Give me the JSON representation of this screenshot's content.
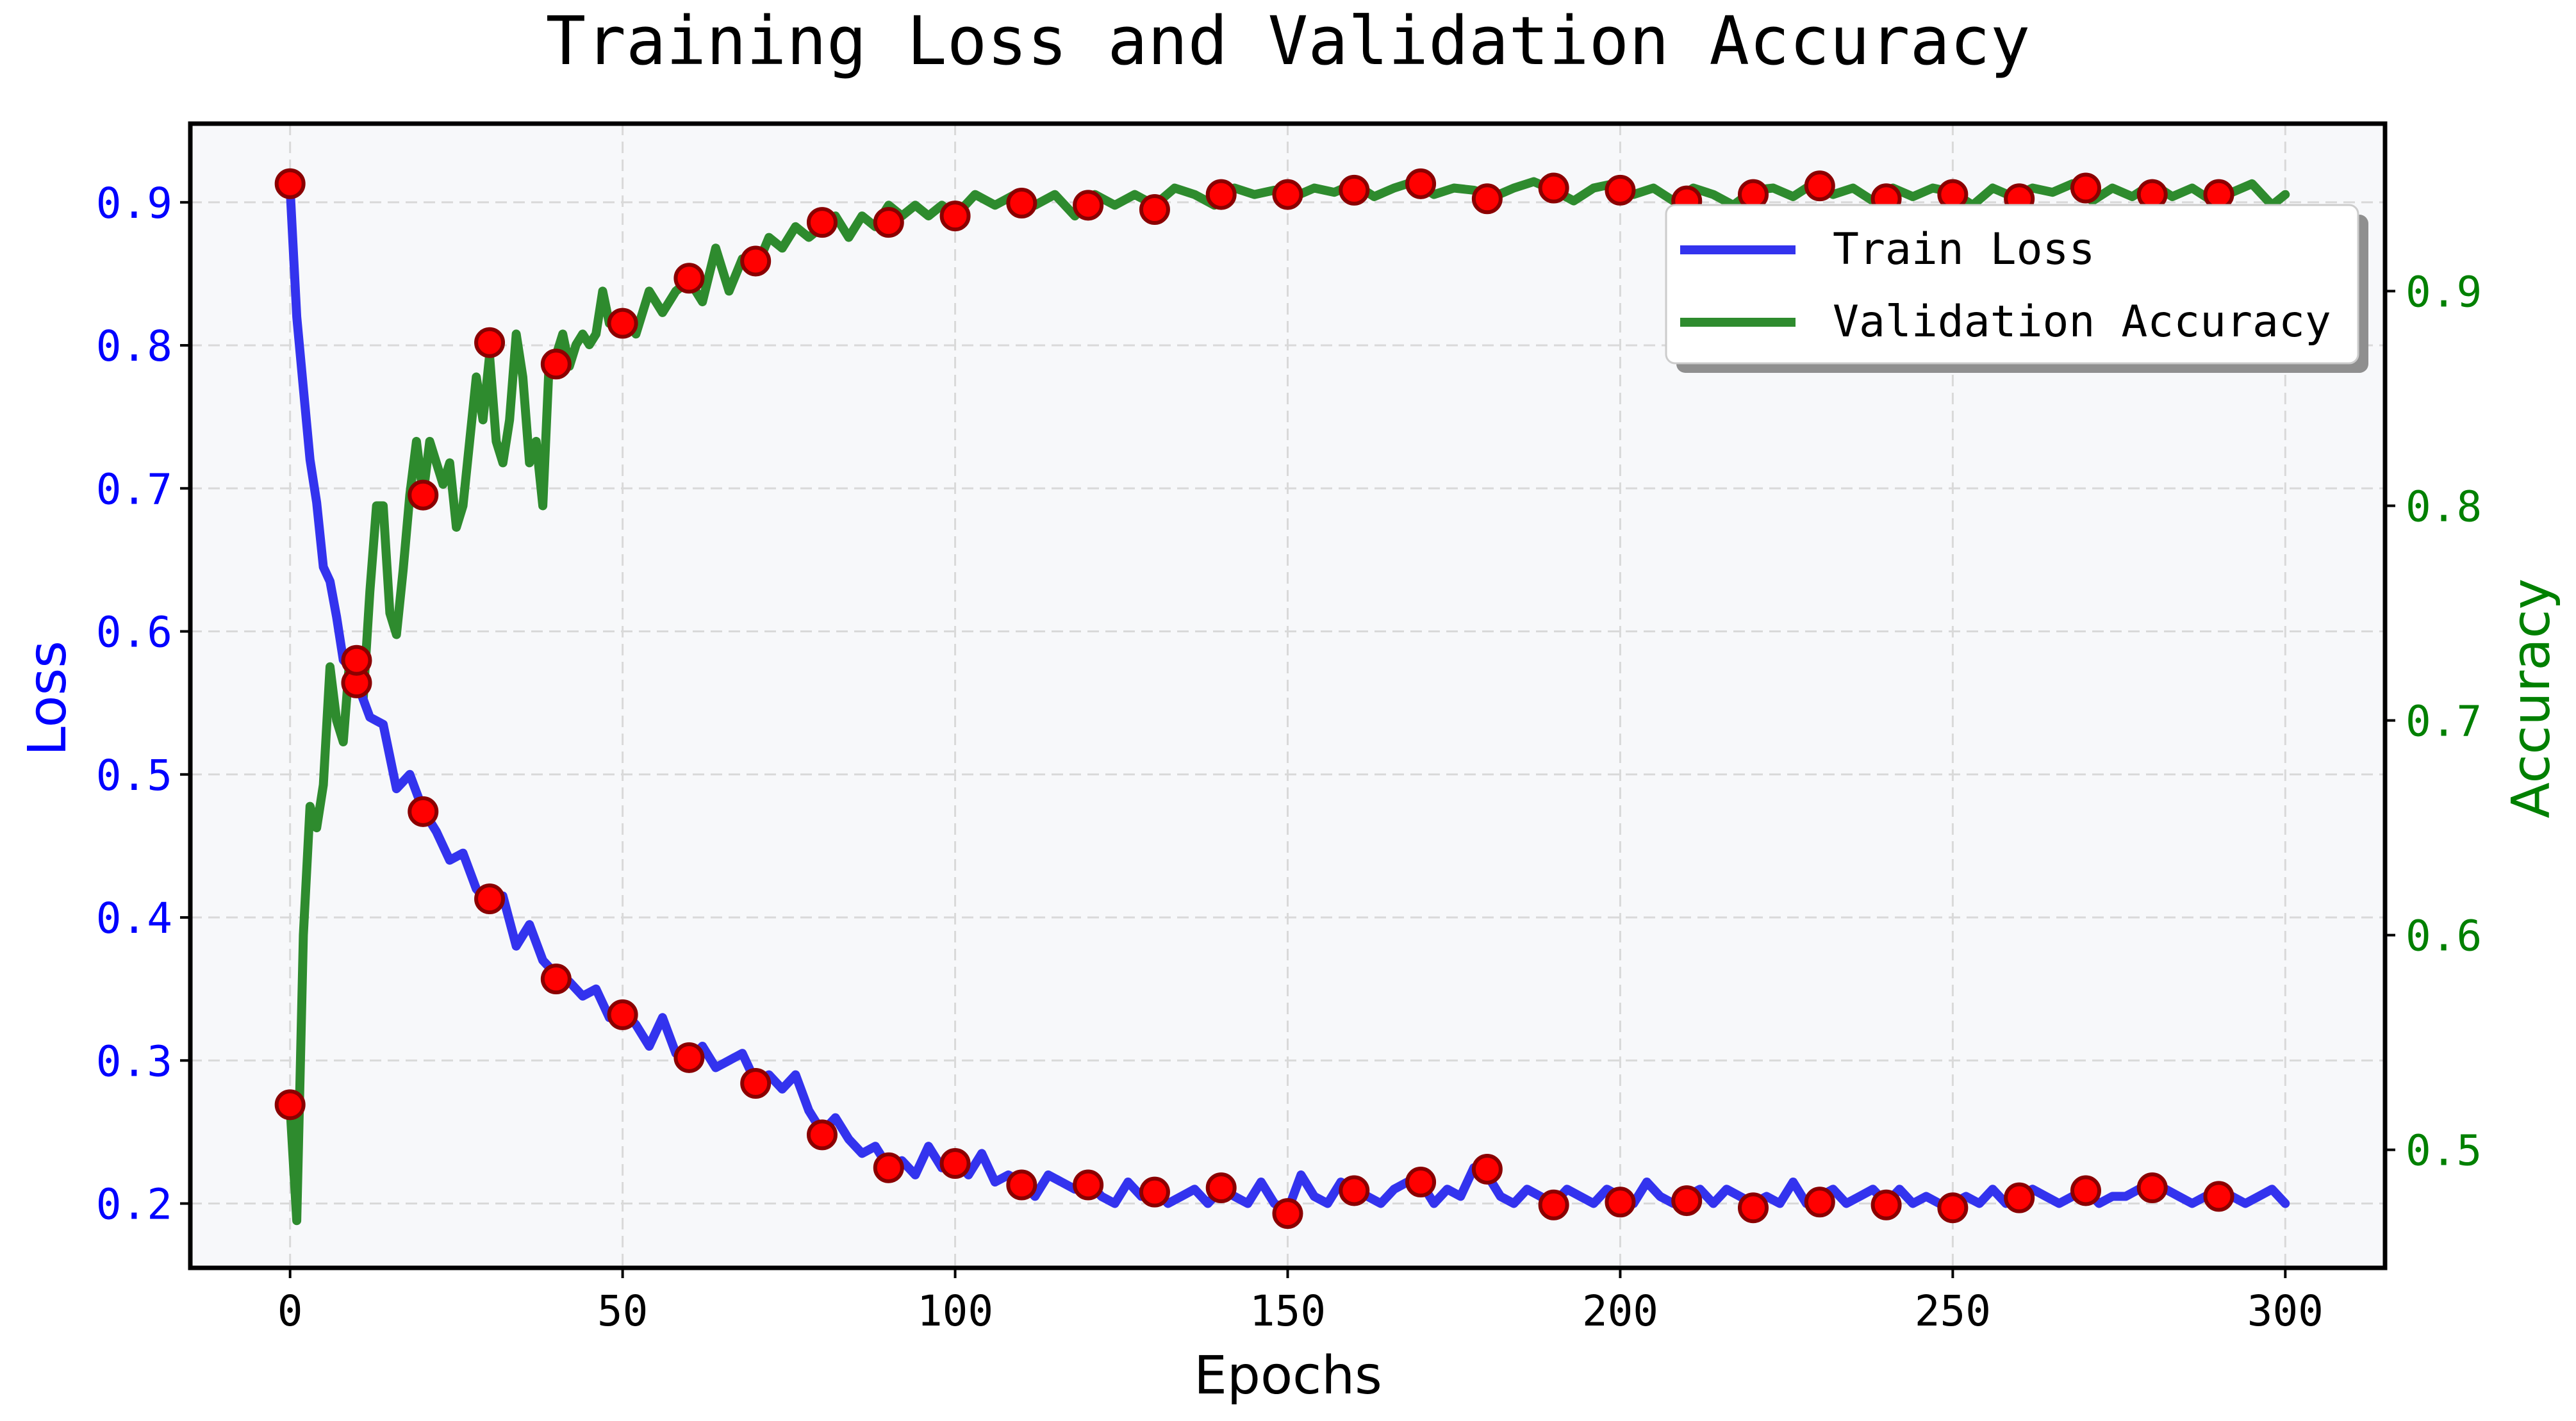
{
  "chart_data": {
    "type": "line",
    "title": "Training Loss and Validation Accuracy",
    "xlabel": "Epochs",
    "ylabel_left": "Loss",
    "ylabel_right": "Accuracy",
    "xlim": [
      -15,
      315
    ],
    "ylim_left": [
      0.155,
      0.955
    ],
    "ylim_right": [
      0.445,
      0.978
    ],
    "xticks": [
      0,
      50,
      100,
      150,
      200,
      250,
      300
    ],
    "yticks_left": [
      0.2,
      0.3,
      0.4,
      0.5,
      0.6,
      0.7,
      0.8,
      0.9
    ],
    "yticks_right": [
      0.5,
      0.6,
      0.7,
      0.8,
      0.9
    ],
    "xtick_labels": [
      "0",
      "50",
      "100",
      "150",
      "200",
      "250",
      "300"
    ],
    "ytick_labels_left": [
      "0.2",
      "0.3",
      "0.4",
      "0.5",
      "0.6",
      "0.7",
      "0.8",
      "0.9"
    ],
    "ytick_labels_right": [
      "0.5",
      "0.6",
      "0.7",
      "0.8",
      "0.9"
    ],
    "grid": true,
    "legend_position": "top-right",
    "colors": {
      "train_loss": "#3333ee",
      "val_accuracy": "#2e8b2e",
      "marker_fill": "#ff0000",
      "marker_edge": "#8b0000",
      "axes_background": "#f7f8fa",
      "grid": "#d9d9d9",
      "left_axis_text": "#0000ff",
      "right_axis_text": "#008000"
    },
    "series": [
      {
        "name": "Train Loss",
        "axis": "left",
        "x": [
          0,
          1,
          2,
          3,
          4,
          5,
          6,
          7,
          8,
          9,
          10,
          12,
          14,
          16,
          18,
          20,
          22,
          24,
          26,
          28,
          30,
          32,
          34,
          36,
          38,
          40,
          42,
          44,
          46,
          48,
          50,
          52,
          54,
          56,
          58,
          60,
          62,
          64,
          66,
          68,
          70,
          72,
          74,
          76,
          78,
          80,
          82,
          84,
          86,
          88,
          90,
          92,
          94,
          96,
          98,
          100,
          102,
          104,
          106,
          108,
          110,
          112,
          114,
          116,
          118,
          120,
          122,
          124,
          126,
          128,
          130,
          132,
          134,
          136,
          138,
          140,
          142,
          144,
          146,
          148,
          150,
          152,
          154,
          156,
          158,
          160,
          162,
          164,
          166,
          168,
          170,
          172,
          174,
          176,
          178,
          180,
          182,
          184,
          186,
          188,
          190,
          192,
          194,
          196,
          198,
          200,
          202,
          204,
          206,
          208,
          210,
          212,
          214,
          216,
          218,
          220,
          222,
          224,
          226,
          228,
          230,
          232,
          234,
          236,
          238,
          240,
          242,
          244,
          246,
          248,
          250,
          252,
          254,
          256,
          258,
          260,
          262,
          264,
          266,
          268,
          270,
          272,
          274,
          276,
          278,
          280,
          282,
          284,
          286,
          288,
          290,
          292,
          294,
          296,
          298,
          300
        ],
        "values": [
          0.91,
          0.82,
          0.77,
          0.72,
          0.69,
          0.645,
          0.635,
          0.61,
          0.58,
          0.575,
          0.565,
          0.54,
          0.535,
          0.49,
          0.5,
          0.475,
          0.46,
          0.44,
          0.445,
          0.42,
          0.41,
          0.415,
          0.38,
          0.395,
          0.37,
          0.36,
          0.355,
          0.345,
          0.35,
          0.33,
          0.335,
          0.325,
          0.31,
          0.33,
          0.305,
          0.3,
          0.31,
          0.295,
          0.3,
          0.305,
          0.285,
          0.29,
          0.28,
          0.29,
          0.265,
          0.25,
          0.26,
          0.245,
          0.235,
          0.24,
          0.225,
          0.23,
          0.22,
          0.24,
          0.225,
          0.23,
          0.22,
          0.235,
          0.215,
          0.22,
          0.215,
          0.205,
          0.22,
          0.215,
          0.21,
          0.215,
          0.205,
          0.2,
          0.215,
          0.205,
          0.21,
          0.2,
          0.205,
          0.21,
          0.2,
          0.21,
          0.205,
          0.2,
          0.215,
          0.2,
          0.195,
          0.22,
          0.205,
          0.2,
          0.215,
          0.21,
          0.205,
          0.2,
          0.21,
          0.215,
          0.215,
          0.2,
          0.21,
          0.205,
          0.225,
          0.22,
          0.205,
          0.2,
          0.21,
          0.205,
          0.2,
          0.21,
          0.205,
          0.2,
          0.21,
          0.205,
          0.2,
          0.215,
          0.205,
          0.2,
          0.205,
          0.21,
          0.2,
          0.21,
          0.205,
          0.2,
          0.205,
          0.2,
          0.215,
          0.2,
          0.205,
          0.21,
          0.2,
          0.205,
          0.21,
          0.2,
          0.21,
          0.2,
          0.205,
          0.2,
          0.2,
          0.205,
          0.2,
          0.21,
          0.2,
          0.205,
          0.21,
          0.205,
          0.2,
          0.205,
          0.21,
          0.2,
          0.205,
          0.205,
          0.21,
          0.215,
          0.21,
          0.205,
          0.2,
          0.205,
          0.21,
          0.205,
          0.2,
          0.205,
          0.21,
          0.2
        ]
      },
      {
        "name": "Validation Accuracy",
        "axis": "right",
        "x": [
          0,
          1,
          2,
          3,
          4,
          5,
          6,
          7,
          8,
          9,
          10,
          11,
          12,
          13,
          14,
          15,
          16,
          17,
          18,
          19,
          20,
          21,
          22,
          23,
          24,
          25,
          26,
          27,
          28,
          29,
          30,
          31,
          32,
          33,
          34,
          35,
          36,
          37,
          38,
          39,
          40,
          41,
          42,
          43,
          44,
          45,
          46,
          47,
          48,
          50,
          52,
          54,
          56,
          58,
          60,
          62,
          64,
          66,
          68,
          70,
          72,
          74,
          76,
          78,
          80,
          82,
          84,
          86,
          88,
          90,
          92,
          94,
          96,
          98,
          100,
          103,
          106,
          109,
          112,
          115,
          118,
          121,
          124,
          127,
          130,
          133,
          136,
          139,
          142,
          145,
          148,
          151,
          154,
          157,
          160,
          163,
          166,
          169,
          172,
          175,
          178,
          181,
          184,
          187,
          190,
          193,
          196,
          199,
          202,
          205,
          208,
          211,
          214,
          217,
          220,
          223,
          226,
          229,
          232,
          235,
          238,
          241,
          244,
          247,
          250,
          253,
          256,
          259,
          262,
          265,
          268,
          271,
          274,
          277,
          280,
          283,
          286,
          289,
          292,
          295,
          298,
          300
        ],
        "values": [
          0.52,
          0.467,
          0.6,
          0.66,
          0.65,
          0.67,
          0.725,
          0.7,
          0.69,
          0.73,
          0.72,
          0.71,
          0.76,
          0.8,
          0.8,
          0.75,
          0.74,
          0.77,
          0.805,
          0.83,
          0.805,
          0.83,
          0.82,
          0.81,
          0.82,
          0.79,
          0.8,
          0.83,
          0.86,
          0.84,
          0.87,
          0.83,
          0.82,
          0.84,
          0.88,
          0.86,
          0.82,
          0.83,
          0.8,
          0.87,
          0.87,
          0.88,
          0.865,
          0.875,
          0.88,
          0.875,
          0.88,
          0.9,
          0.885,
          0.89,
          0.88,
          0.9,
          0.89,
          0.9,
          0.905,
          0.895,
          0.92,
          0.9,
          0.915,
          0.91,
          0.925,
          0.92,
          0.93,
          0.925,
          0.93,
          0.935,
          0.925,
          0.935,
          0.93,
          0.94,
          0.935,
          0.94,
          0.935,
          0.94,
          0.935,
          0.945,
          0.94,
          0.945,
          0.94,
          0.945,
          0.935,
          0.945,
          0.94,
          0.945,
          0.94,
          0.948,
          0.945,
          0.94,
          0.948,
          0.945,
          0.947,
          0.944,
          0.948,
          0.946,
          0.95,
          0.944,
          0.948,
          0.951,
          0.945,
          0.948,
          0.947,
          0.944,
          0.948,
          0.951,
          0.947,
          0.942,
          0.948,
          0.95,
          0.945,
          0.948,
          0.942,
          0.948,
          0.945,
          0.94,
          0.947,
          0.948,
          0.944,
          0.95,
          0.945,
          0.948,
          0.942,
          0.948,
          0.944,
          0.948,
          0.946,
          0.94,
          0.948,
          0.944,
          0.948,
          0.946,
          0.95,
          0.942,
          0.948,
          0.944,
          0.95,
          0.944,
          0.948,
          0.942,
          0.946,
          0.95,
          0.94,
          0.945
        ]
      }
    ],
    "markers": {
      "loss_x": [
        0,
        10,
        20,
        30,
        40,
        50,
        60,
        70,
        80,
        90,
        100,
        110,
        120,
        130,
        140,
        150,
        160,
        170,
        180,
        190,
        200,
        210,
        220,
        230,
        240,
        250,
        260,
        270,
        280,
        290
      ],
      "loss_y": [
        0.913,
        0.564,
        0.474,
        0.413,
        0.357,
        0.332,
        0.302,
        0.284,
        0.248,
        0.225,
        0.228,
        0.213,
        0.213,
        0.208,
        0.211,
        0.193,
        0.209,
        0.215,
        0.224,
        0.199,
        0.201,
        0.202,
        0.197,
        0.201,
        0.199,
        0.197,
        0.204,
        0.209,
        0.211,
        0.205
      ],
      "acc_x": [
        0,
        10,
        20,
        30,
        40,
        50,
        60,
        70,
        80,
        90,
        100,
        110,
        120,
        130,
        140,
        150,
        160,
        170,
        180,
        190,
        200,
        210,
        220,
        230,
        240,
        250,
        260,
        270,
        280,
        290
      ],
      "acc_y": [
        0.521,
        0.728,
        0.805,
        0.876,
        0.866,
        0.885,
        0.906,
        0.914,
        0.932,
        0.932,
        0.935,
        0.941,
        0.94,
        0.938,
        0.945,
        0.945,
        0.947,
        0.95,
        0.943,
        0.948,
        0.947,
        0.942,
        0.945,
        0.949,
        0.943,
        0.945,
        0.943,
        0.948,
        0.945,
        0.945
      ]
    }
  }
}
